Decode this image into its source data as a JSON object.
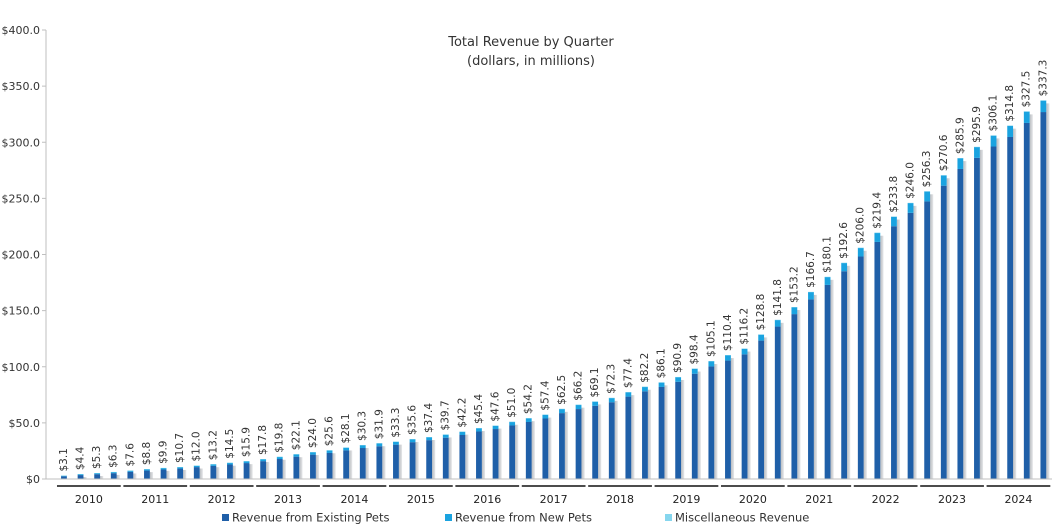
{
  "chart_data": {
    "type": "bar",
    "stacked": true,
    "title": "Total Revenue by Quarter",
    "subtitle": "(dollars, in millions)",
    "y_axis": {
      "ylim": [
        0,
        400
      ],
      "ticks": [
        0,
        50,
        100,
        150,
        200,
        250,
        300,
        350,
        400
      ],
      "tick_labels": [
        "$0",
        "$50.0",
        "$100.0",
        "$150.0",
        "$200.0",
        "$250.0",
        "$300.0",
        "$350.0",
        "$400.0"
      ]
    },
    "years": [
      "2010",
      "2011",
      "2012",
      "2013",
      "2014",
      "2015",
      "2016",
      "2017",
      "2018",
      "2019",
      "2020",
      "2021",
      "2022",
      "2023",
      "2024"
    ],
    "totals": [
      3.1,
      4.4,
      5.3,
      6.3,
      7.6,
      8.8,
      9.9,
      10.7,
      12.0,
      13.2,
      14.5,
      15.9,
      17.8,
      19.8,
      22.1,
      24.0,
      25.6,
      28.1,
      30.3,
      31.9,
      33.3,
      35.6,
      37.4,
      39.7,
      42.2,
      45.4,
      47.6,
      51.0,
      54.2,
      57.4,
      62.5,
      66.2,
      69.1,
      72.3,
      77.4,
      82.2,
      86.1,
      90.9,
      98.4,
      105.1,
      110.4,
      116.2,
      128.8,
      141.8,
      153.2,
      166.7,
      180.1,
      192.6,
      206.0,
      219.4,
      233.8,
      246.0,
      256.3,
      270.6,
      285.9,
      295.9,
      306.1,
      314.8,
      327.5,
      337.3
    ],
    "labels": [
      "$3.1",
      "$4.4",
      "$5.3",
      "$6.3",
      "$7.6",
      "$8.8",
      "$9.9",
      "$10.7",
      "$12.0",
      "$13.2",
      "$14.5",
      "$15.9",
      "$17.8",
      "$19.8",
      "$22.1",
      "$24.0",
      "$25.6",
      "$28.1",
      "$30.3",
      "$31.9",
      "$33.3",
      "$35.6",
      "$37.4",
      "$39.7",
      "$42.2",
      "$45.4",
      "$47.6",
      "$51.0",
      "$54.2",
      "$57.4",
      "$62.5",
      "$66.2",
      "$69.1",
      "$72.3",
      "$77.4",
      "$82.2",
      "$86.1",
      "$90.9",
      "$98.4",
      "$105.1",
      "$110.4",
      "$116.2",
      "$128.8",
      "$141.8",
      "$153.2",
      "$166.7",
      "$180.1",
      "$192.6",
      "$206.0",
      "$219.4",
      "$233.8",
      "$246.0",
      "$256.3",
      "$270.6",
      "$285.9",
      "$295.9",
      "$306.1",
      "$314.8",
      "$327.5",
      "$337.3"
    ],
    "series": [
      {
        "name": "Revenue from Existing Pets",
        "color": "#1f5fa8",
        "values": [
          2.4,
          3.5,
          4.3,
          5.2,
          6.4,
          7.5,
          8.5,
          9.3,
          10.6,
          11.7,
          12.9,
          14.2,
          15.9,
          17.8,
          19.9,
          21.7,
          23.2,
          25.5,
          27.6,
          29.2,
          30.6,
          32.8,
          34.6,
          36.8,
          39.2,
          42.3,
          44.5,
          47.7,
          50.8,
          53.9,
          58.7,
          62.3,
          65.2,
          68.4,
          73.4,
          78.1,
          82.0,
          86.6,
          93.8,
          100.3,
          105.5,
          111.1,
          123.3,
          135.8,
          146.9,
          160.0,
          172.9,
          185.1,
          198.2,
          211.2,
          225.2,
          237.1,
          247.3,
          261.3,
          276.2,
          286.1,
          296.2,
          304.7,
          317.2,
          326.9
        ]
      },
      {
        "name": "Revenue from New Pets",
        "color": "#1aa3e0",
        "values": [
          0.6,
          0.8,
          0.9,
          1.0,
          1.1,
          1.2,
          1.3,
          1.3,
          1.3,
          1.4,
          1.5,
          1.6,
          1.8,
          1.9,
          2.1,
          2.2,
          2.3,
          2.5,
          2.6,
          2.6,
          2.6,
          2.7,
          2.7,
          2.8,
          2.9,
          3.0,
          3.0,
          3.2,
          3.3,
          3.4,
          3.7,
          3.8,
          3.8,
          3.8,
          3.9,
          4.0,
          4.0,
          4.2,
          4.5,
          4.7,
          4.8,
          5.0,
          5.4,
          5.9,
          6.2,
          6.6,
          7.1,
          7.4,
          7.7,
          8.1,
          8.5,
          8.8,
          8.9,
          9.2,
          9.6,
          9.7,
          9.8,
          10.0,
          10.2,
          10.3
        ]
      },
      {
        "name": "Miscellaneous Revenue",
        "color": "#86d6ee",
        "values": [
          0.1,
          0.1,
          0.1,
          0.1,
          0.1,
          0.1,
          0.1,
          0.1,
          0.1,
          0.1,
          0.1,
          0.1,
          0.1,
          0.1,
          0.1,
          0.1,
          0.1,
          0.1,
          0.1,
          0.1,
          0.1,
          0.1,
          0.1,
          0.1,
          0.1,
          0.1,
          0.1,
          0.1,
          0.1,
          0.1,
          0.1,
          0.1,
          0.1,
          0.1,
          0.1,
          0.1,
          0.1,
          0.1,
          0.1,
          0.1,
          0.1,
          0.1,
          0.1,
          0.1,
          0.1,
          0.1,
          0.1,
          0.1,
          0.1,
          0.1,
          0.1,
          0.1,
          0.1,
          0.1,
          0.1,
          0.1,
          0.1,
          0.1,
          0.1,
          0.1
        ]
      }
    ],
    "legend_position": "bottom",
    "grid": false
  }
}
